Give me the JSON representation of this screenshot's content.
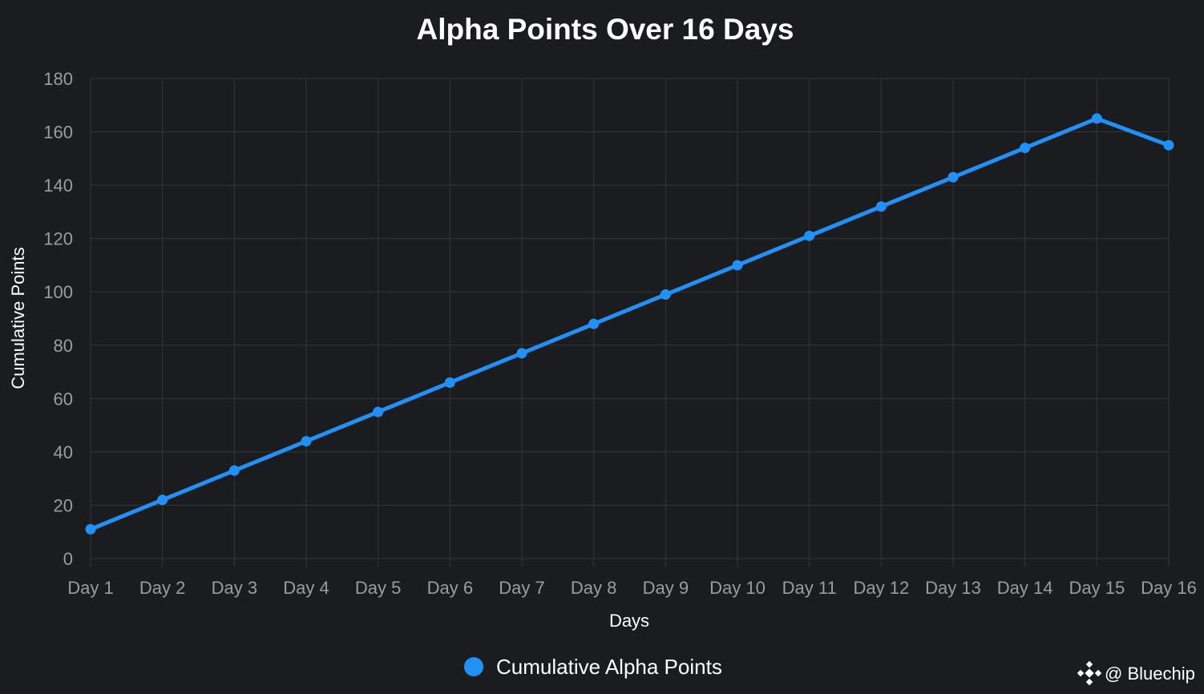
{
  "chart_data": {
    "type": "line",
    "title": "Alpha Points Over 16 Days",
    "xlabel": "Days",
    "ylabel": "Cumulative Points",
    "categories": [
      "Day 1",
      "Day 2",
      "Day 3",
      "Day 4",
      "Day 5",
      "Day 6",
      "Day 7",
      "Day 8",
      "Day 9",
      "Day 10",
      "Day 11",
      "Day 12",
      "Day 13",
      "Day 14",
      "Day 15",
      "Day 16"
    ],
    "series": [
      {
        "name": "Cumulative Alpha Points",
        "values": [
          11,
          22,
          33,
          44,
          55,
          66,
          77,
          88,
          99,
          110,
          121,
          132,
          143,
          154,
          165,
          155
        ],
        "color": "#2290f5"
      }
    ],
    "ylim": [
      0,
      180
    ],
    "yticks": [
      0,
      20,
      40,
      60,
      80,
      100,
      120,
      140,
      160,
      180
    ],
    "grid": true,
    "legend": "bottom-center"
  },
  "watermark": {
    "text": "@ Bluechip",
    "icon": "diamond-logo-icon"
  },
  "colors": {
    "background": "#1b1c20",
    "grid": "#33353b",
    "tick": "#9a9ca3",
    "line": "#2290f5"
  }
}
